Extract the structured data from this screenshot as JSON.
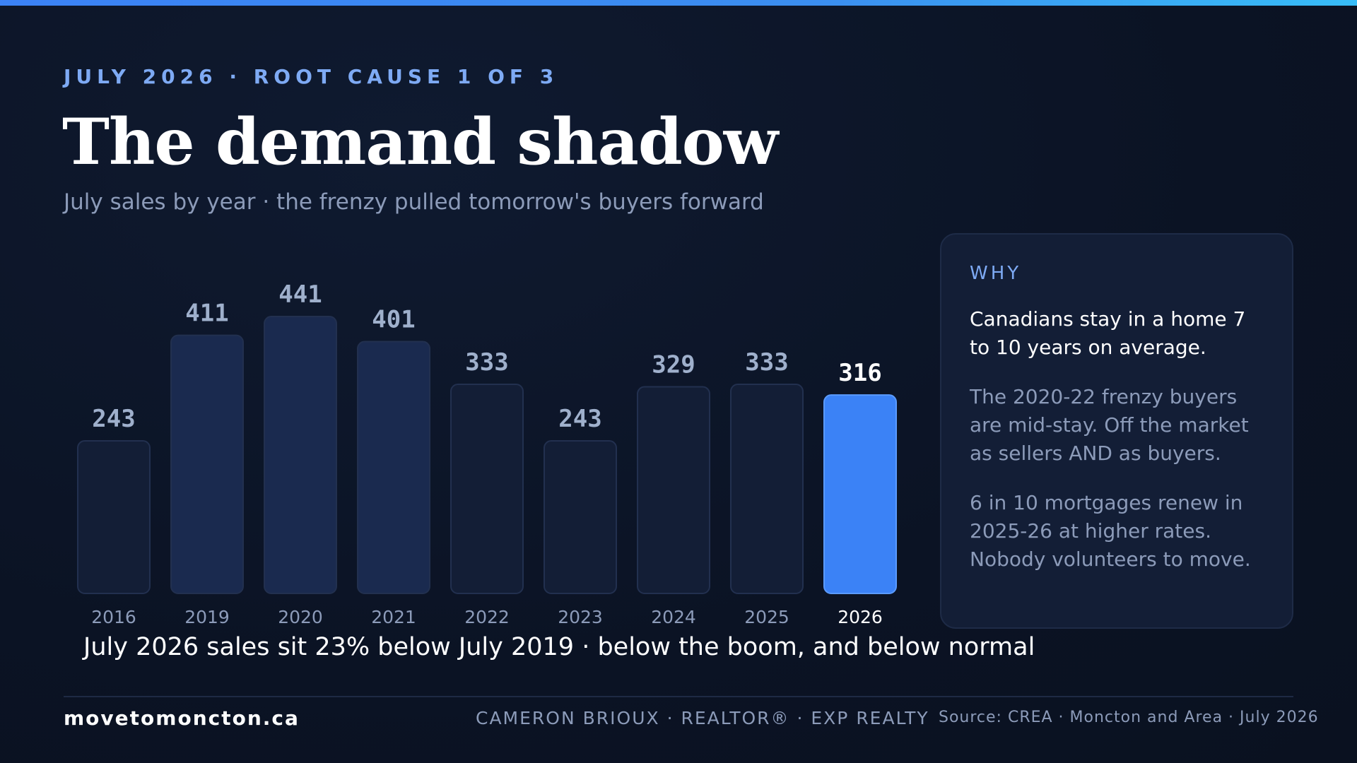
{
  "header": {
    "eyebrow": "JULY 2026 · ROOT CAUSE 1 OF 3",
    "title": "The demand shadow",
    "subtitle": "July sales by year · the frenzy pulled tomorrow's buyers forward"
  },
  "chart_data": {
    "type": "bar",
    "categories": [
      "2016",
      "2019",
      "2020",
      "2021",
      "2022",
      "2023",
      "2024",
      "2025",
      "2026"
    ],
    "values": [
      243,
      411,
      441,
      401,
      333,
      243,
      329,
      333,
      316
    ],
    "highlight_category": "2026",
    "title": "",
    "xlabel": "",
    "ylabel": "",
    "ylim": [
      0,
      441
    ],
    "grid": false,
    "legend": "none",
    "colors": {
      "low": "#131e36",
      "mid": "#17264a",
      "high": "#1a2a4f",
      "highlight": "#3b82f6",
      "outline": "#22304f"
    }
  },
  "caption": "July 2026 sales sit 23% below July 2019 · below the boom, and below normal",
  "why": {
    "label": "WHY",
    "lead": "Canadians stay in a home 7 to 10 years on average.",
    "para1": "The 2020-22 frenzy buyers are mid-stay. Off the market as sellers AND as buyers.",
    "para2": "6 in 10 mortgages renew in 2025-26 at higher rates. Nobody volunteers to move."
  },
  "footer": {
    "site": "movetomoncton.ca",
    "agent": "CAMERON BRIOUX · REALTOR® · EXP REALTY",
    "source": "Source: CREA · Moncton and Area · July 2026"
  },
  "colors": {
    "background": "#0b1324",
    "accent": "#3b82f6",
    "eyebrow": "#7eaaf4",
    "muted": "#8c9bb9"
  }
}
